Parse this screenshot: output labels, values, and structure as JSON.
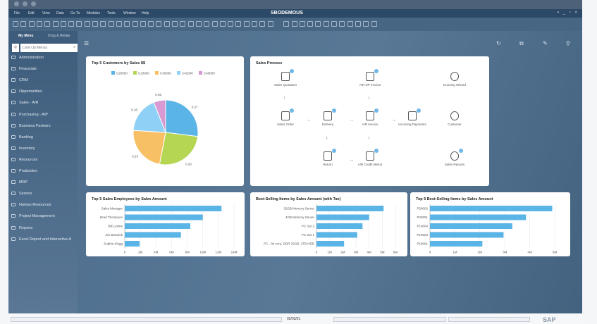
{
  "app": {
    "title": "SBODEMOUS",
    "menu": [
      "File",
      "Edit",
      "View",
      "Data",
      "Go To",
      "Modules",
      "Tools",
      "Window",
      "Help"
    ]
  },
  "sidebar": {
    "tabs": [
      "My Menu",
      "Drag & Relate"
    ],
    "search_placeholder": "Look Up Menus",
    "items": [
      "Administration",
      "Financials",
      "CRM",
      "Opportunities",
      "Sales - A/R",
      "Purchasing - A/P",
      "Business Partners",
      "Banking",
      "Inventory",
      "Resources",
      "Production",
      "MRP",
      "Service",
      "Human Resources",
      "Project Management",
      "Reports",
      "Excel Report and Interactive A"
    ]
  },
  "main": {
    "header_icons": [
      "menu-icon",
      "refresh-icon",
      "export-icon",
      "edit-icon",
      "search-icon"
    ]
  },
  "sales_process": {
    "title": "Sales Process",
    "nodes": [
      "Sales Quotation",
      "A/R DP Invoice",
      "Dunning Wizard",
      "Sales Order",
      "Delivery",
      "A/R Invoice",
      "Incoming Payments",
      "Customer",
      "Return",
      "A/R Credit Memo",
      "Sales Reports"
    ]
  },
  "status": {
    "date": "02/03/21",
    "logo": "SAP Business One"
  },
  "colors": {
    "accent": "#5ab4e6",
    "menubar": "#2c4a68"
  },
  "chart_data": [
    {
      "type": "pie",
      "title": "Top 5 Customers by Sales $$",
      "categories": [
        "C20000",
        "C23900",
        "C30000",
        "C42000",
        "C40000"
      ],
      "values": [
        0.27,
        0.26,
        0.23,
        0.18,
        0.06
      ],
      "colors": [
        "#5ab4e6",
        "#b5d653",
        "#f8c064",
        "#8fd0f6",
        "#d79ad2"
      ],
      "legend": "top"
    },
    {
      "type": "bar",
      "orientation": "horizontal",
      "title": "Top 5 Sales Employees by Sales Amount",
      "categories": [
        "Sales Manager",
        "Brad Thompson",
        "Bill Levine",
        "Jim Boswick",
        "Sophie Klogg"
      ],
      "values": [
        12.4,
        10,
        8.4,
        7.2,
        1.9
      ],
      "unit": "M",
      "xlim": [
        0,
        14
      ],
      "ticks": [
        "0",
        "2M",
        "4M",
        "6M",
        "8M",
        "10M",
        "12M",
        "14M"
      ],
      "color": "#5ab4e6"
    },
    {
      "type": "bar",
      "orientation": "horizontal",
      "title": "Best-Selling Items by Sales Amount (with Tax)",
      "categories": [
        "32GB Memory Server",
        "4GB Memory Server",
        "PC Set 2",
        "PC Set 1",
        "PC - 8x core, DDR 32GB, 2TB HDD"
      ],
      "values": [
        5.1,
        4.0,
        3.5,
        3.1,
        2.1
      ],
      "unit": "M",
      "xlim": [
        0,
        6
      ],
      "ticks": [
        "0",
        "1M",
        "2M",
        "3M",
        "4M",
        "5M",
        "6M"
      ],
      "color": "#5ab4e6"
    },
    {
      "type": "bar",
      "orientation": "horizontal",
      "title": "Top 5 Best-Selling Items by Sales Amount",
      "categories": [
        "P20002",
        "P20001",
        "P10004",
        "P10003",
        "P10001"
      ],
      "values": [
        4.9,
        3.85,
        3.3,
        2.95,
        2.1
      ],
      "unit": "M",
      "xlim": [
        0,
        5
      ],
      "ticks": [
        "0",
        "1M",
        "2M",
        "3M",
        "4M",
        "5M"
      ],
      "color": "#5ab4e6"
    }
  ]
}
